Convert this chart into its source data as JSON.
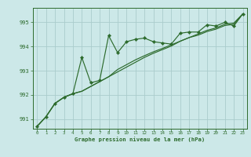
{
  "xlabel": "Graphe pression niveau de la mer (hPa)",
  "bg_color": "#cce8e8",
  "grid_color": "#aacccc",
  "line_color": "#2d6b2d",
  "marker_color": "#2d6b2d",
  "xlim": [
    -0.5,
    23.5
  ],
  "ylim": [
    990.6,
    995.6
  ],
  "yticks": [
    991,
    992,
    993,
    994,
    995
  ],
  "xticks": [
    0,
    1,
    2,
    3,
    4,
    5,
    6,
    7,
    8,
    9,
    10,
    11,
    12,
    13,
    14,
    15,
    16,
    17,
    18,
    19,
    20,
    21,
    22,
    23
  ],
  "series1_x": [
    0,
    1,
    2,
    3,
    4,
    5,
    6,
    7,
    8,
    9,
    10,
    11,
    12,
    13,
    14,
    15,
    16,
    17,
    18,
    19,
    20,
    21,
    22,
    23
  ],
  "series1_y": [
    990.7,
    991.1,
    991.65,
    991.9,
    992.05,
    993.55,
    992.5,
    992.6,
    994.45,
    993.75,
    994.2,
    994.3,
    994.35,
    994.2,
    994.15,
    994.1,
    994.55,
    994.6,
    994.6,
    994.9,
    994.85,
    995.0,
    994.85,
    995.35
  ],
  "series2_x": [
    0,
    1,
    2,
    3,
    4,
    5,
    6,
    7,
    8,
    9,
    10,
    11,
    12,
    13,
    14,
    15,
    16,
    17,
    18,
    19,
    20,
    21,
    22,
    23
  ],
  "series2_y": [
    990.7,
    991.1,
    991.65,
    991.9,
    992.05,
    992.15,
    992.35,
    992.55,
    992.75,
    992.95,
    993.15,
    993.35,
    993.55,
    993.72,
    993.87,
    994.02,
    994.22,
    994.37,
    994.47,
    994.62,
    994.72,
    994.87,
    994.92,
    995.35
  ],
  "series3_x": [
    0,
    1,
    2,
    3,
    4,
    5,
    6,
    7,
    8,
    9,
    10,
    11,
    12,
    13,
    14,
    15,
    16,
    17,
    18,
    19,
    20,
    21,
    22,
    23
  ],
  "series3_y": [
    990.7,
    991.1,
    991.65,
    991.9,
    992.05,
    992.15,
    992.35,
    992.55,
    992.75,
    993.05,
    993.25,
    993.45,
    993.62,
    993.78,
    993.92,
    994.07,
    994.22,
    994.37,
    994.52,
    994.67,
    994.77,
    994.92,
    994.97,
    995.35
  ]
}
